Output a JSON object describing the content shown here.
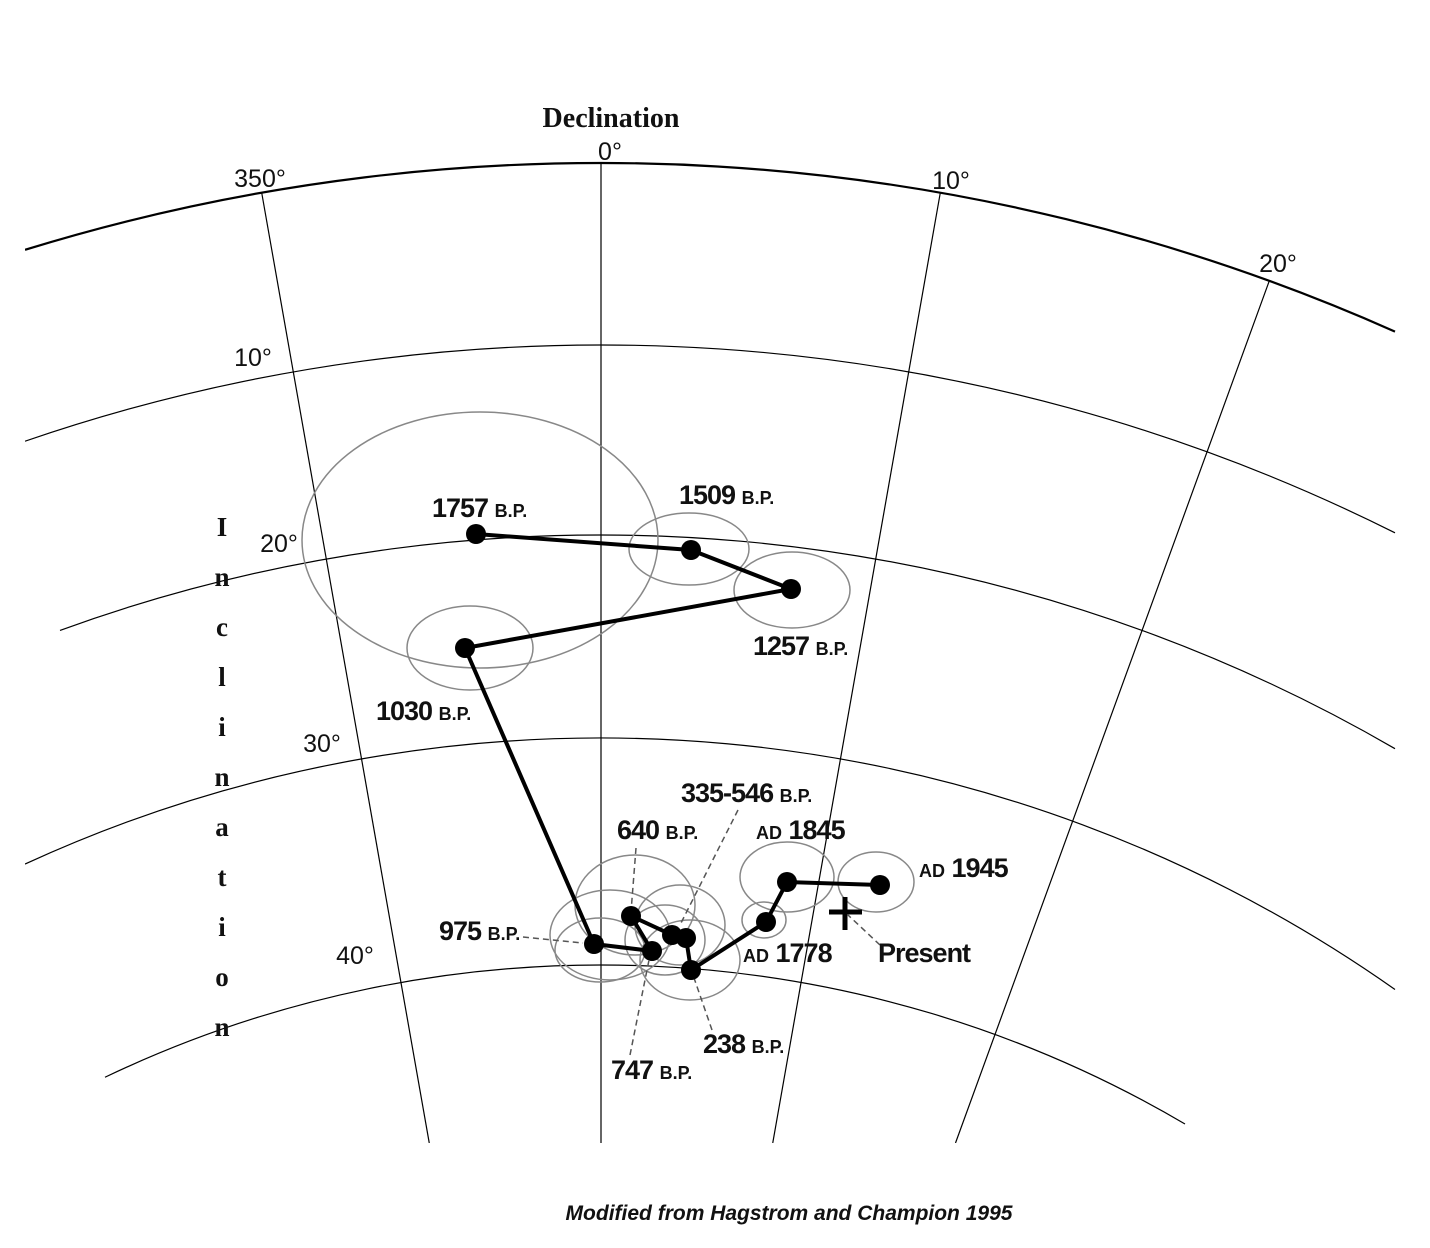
{
  "title": "Declination",
  "declination_labels": [
    "350°",
    "0°",
    "10°",
    "20°"
  ],
  "inclination_axis": "Inclination",
  "inclination_labels": [
    "10°",
    "20°",
    "30°",
    "40°"
  ],
  "points": [
    {
      "year": "1757",
      "era": "B.P."
    },
    {
      "year": "1509",
      "era": "B.P."
    },
    {
      "year": "1257",
      "era": "B.P."
    },
    {
      "year": "1030",
      "era": "B.P."
    },
    {
      "year": "335-546",
      "era": "B.P."
    },
    {
      "year": "640",
      "era": "B.P."
    },
    {
      "year": "1845",
      "era": "AD"
    },
    {
      "year": "1945",
      "era": "AD"
    },
    {
      "year": "975",
      "era": "B.P."
    },
    {
      "year": "1778",
      "era": "AD"
    },
    {
      "year": "238",
      "era": "B.P."
    },
    {
      "year": "747",
      "era": "B.P."
    }
  ],
  "present": "Present",
  "source": "Modified from Hagstrom and Champion 1995"
}
